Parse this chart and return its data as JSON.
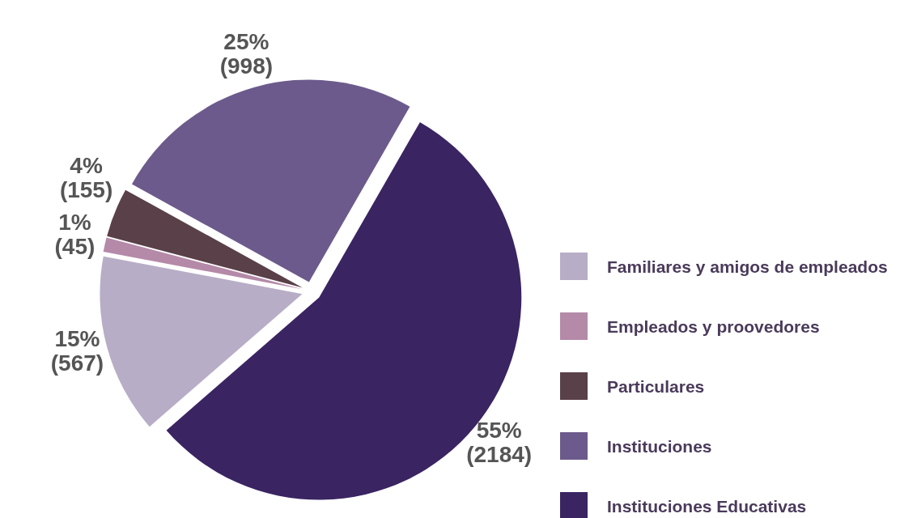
{
  "chart_data": {
    "type": "pie",
    "categories": [
      "Familiares y amigos de empleados",
      "Empleados y proovedores",
      "Particulares",
      "Instituciones",
      "Instituciones Educativas"
    ],
    "values": [
      567,
      45,
      155,
      998,
      2184
    ],
    "colors": [
      "#b8adc6",
      "#b48aa8",
      "#5a4048",
      "#6c5a8c",
      "#3a2462"
    ],
    "value_labels": [
      "15% (567)",
      "1% (45)",
      "4% (155)",
      "25% (998)",
      "55% (2184)"
    ],
    "legend": "right"
  }
}
